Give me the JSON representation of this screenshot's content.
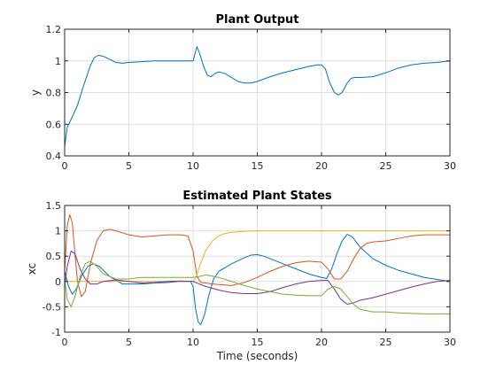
{
  "chart_data": [
    {
      "type": "line",
      "title": "Plant Output",
      "xlabel": "",
      "ylabel": "y",
      "xlim": [
        0,
        30
      ],
      "ylim": [
        0.4,
        1.2
      ],
      "xticks": [
        0,
        5,
        10,
        15,
        20,
        25,
        30
      ],
      "yticks": [
        0.4,
        0.6,
        0.8,
        1,
        1.2
      ],
      "xtick_labels": [
        "0",
        "5",
        "10",
        "15",
        "20",
        "25",
        "30"
      ],
      "ytick_labels": [
        "0.4",
        "0.6",
        "0.8",
        "1",
        "1.2"
      ],
      "grid": true,
      "series": [
        {
          "color": "#0072bd",
          "x": [
            0,
            0.2,
            0.5,
            1,
            1.5,
            2,
            2.3,
            2.6,
            3,
            3.5,
            4,
            4.5,
            5,
            6,
            7,
            8,
            9,
            10,
            10.1,
            10.3,
            10.5,
            10.8,
            11.1,
            11.4,
            11.7,
            12,
            12.5,
            13,
            13.5,
            14,
            14.5,
            15,
            16,
            17,
            18,
            19,
            19.7,
            20,
            20.3,
            20.6,
            21,
            21.3,
            21.6,
            22,
            22.3,
            22.6,
            23,
            24,
            25,
            26,
            27,
            28,
            29,
            30
          ],
          "y": [
            0.46,
            0.58,
            0.63,
            0.72,
            0.85,
            0.97,
            1.02,
            1.035,
            1.03,
            1.01,
            0.99,
            0.985,
            0.99,
            0.995,
            1.0,
            1.0,
            1.0,
            1.0,
            1.03,
            1.09,
            1.05,
            0.97,
            0.91,
            0.9,
            0.92,
            0.93,
            0.92,
            0.895,
            0.87,
            0.86,
            0.86,
            0.87,
            0.9,
            0.925,
            0.945,
            0.965,
            0.975,
            0.975,
            0.95,
            0.87,
            0.8,
            0.785,
            0.8,
            0.86,
            0.89,
            0.895,
            0.895,
            0.9,
            0.925,
            0.955,
            0.975,
            0.985,
            0.99,
            1.0
          ]
        }
      ]
    },
    {
      "type": "line",
      "title": "Estimated Plant States",
      "xlabel": "Time (seconds)",
      "ylabel": "xc",
      "xlim": [
        0,
        30
      ],
      "ylim": [
        -1,
        1.5
      ],
      "xticks": [
        0,
        5,
        10,
        15,
        20,
        25,
        30
      ],
      "yticks": [
        -1,
        -0.5,
        0,
        0.5,
        1,
        1.5
      ],
      "xtick_labels": [
        "0",
        "5",
        "10",
        "15",
        "20",
        "25",
        "30"
      ],
      "ytick_labels": [
        "-1",
        "-0.5",
        "0",
        "0.5",
        "1",
        "1.5"
      ],
      "grid": true,
      "series": [
        {
          "color": "#0072bd",
          "x": [
            0,
            0.3,
            0.6,
            0.9,
            1.3,
            1.8,
            2.2,
            2.7,
            3.5,
            4.5,
            5,
            6,
            7,
            8,
            9,
            9.8,
            10,
            10.2,
            10.4,
            10.6,
            10.9,
            11.2,
            11.6,
            12,
            13,
            14,
            14.5,
            15,
            15.5,
            16,
            17,
            18,
            19,
            20,
            20.4,
            20.8,
            21.2,
            21.6,
            22,
            22.4,
            23,
            24,
            25,
            26,
            27,
            28,
            29,
            30
          ],
          "y": [
            0.2,
            -0.1,
            -0.25,
            -0.15,
            0.1,
            0.3,
            0.35,
            0.3,
            0.1,
            -0.05,
            -0.05,
            -0.05,
            -0.03,
            -0.02,
            0.0,
            0.0,
            -0.1,
            -0.55,
            -0.8,
            -0.85,
            -0.65,
            -0.3,
            0.05,
            0.2,
            0.35,
            0.47,
            0.52,
            0.53,
            0.5,
            0.45,
            0.35,
            0.25,
            0.15,
            0.08,
            0.06,
            0.25,
            0.55,
            0.8,
            0.93,
            0.88,
            0.68,
            0.45,
            0.32,
            0.22,
            0.15,
            0.08,
            0.04,
            0.0
          ]
        },
        {
          "color": "#d95319",
          "x": [
            0,
            0.2,
            0.4,
            0.6,
            0.8,
            1,
            1.3,
            1.6,
            2,
            2.5,
            3,
            3.5,
            4,
            5,
            6,
            7,
            8,
            9,
            9.6,
            10,
            10.3,
            10.6,
            11,
            11.5,
            12,
            13,
            14,
            15,
            16,
            17,
            18,
            19,
            20,
            20.5,
            21,
            21.5,
            22,
            22.5,
            23,
            23.5,
            24,
            25,
            26,
            27,
            28,
            29,
            30
          ],
          "y": [
            0.2,
            1.1,
            1.32,
            1.15,
            0.55,
            0.0,
            -0.3,
            -0.2,
            0.35,
            0.8,
            1.0,
            1.03,
            1.0,
            0.92,
            0.88,
            0.9,
            0.92,
            0.92,
            0.9,
            0.6,
            0.1,
            -0.02,
            -0.03,
            -0.05,
            -0.06,
            -0.08,
            -0.02,
            0.08,
            0.2,
            0.3,
            0.37,
            0.4,
            0.38,
            0.25,
            0.05,
            0.05,
            0.2,
            0.45,
            0.65,
            0.75,
            0.78,
            0.8,
            0.85,
            0.9,
            0.92,
            0.92,
            0.92
          ]
        },
        {
          "color": "#edb120",
          "x": [
            0,
            1,
            2,
            3,
            4,
            5,
            6,
            7,
            8,
            9,
            10,
            10.2,
            10.5,
            11,
            11.5,
            12,
            12.5,
            13,
            14,
            15,
            16,
            18,
            20,
            22,
            24,
            26,
            28,
            30
          ],
          "y": [
            0.0,
            0.0,
            0.0,
            0.0,
            0.0,
            0.0,
            0.0,
            0.0,
            0.0,
            0.0,
            0.0,
            0.05,
            0.3,
            0.62,
            0.8,
            0.9,
            0.95,
            0.97,
            0.99,
            1.0,
            1.0,
            1.0,
            1.0,
            1.0,
            1.0,
            1.0,
            1.0,
            1.0
          ]
        },
        {
          "color": "#7e2f8e",
          "x": [
            0,
            0.2,
            0.5,
            0.8,
            1.2,
            1.6,
            2,
            2.5,
            3,
            4,
            5,
            6,
            7,
            8,
            9,
            10,
            10.5,
            11,
            12,
            13,
            14,
            15,
            16,
            17,
            18,
            19,
            20,
            20.5,
            21,
            21.5,
            22,
            22.5,
            23,
            24,
            25,
            26,
            27,
            28,
            29,
            30
          ],
          "y": [
            -0.1,
            0.3,
            0.6,
            0.55,
            0.25,
            0.05,
            -0.05,
            -0.05,
            0.0,
            0.03,
            0.0,
            -0.03,
            -0.02,
            0.0,
            0.01,
            0.0,
            -0.05,
            -0.1,
            -0.17,
            -0.22,
            -0.24,
            -0.24,
            -0.2,
            -0.12,
            -0.05,
            0.0,
            0.02,
            0.02,
            -0.15,
            -0.35,
            -0.45,
            -0.42,
            -0.37,
            -0.32,
            -0.25,
            -0.18,
            -0.11,
            -0.05,
            0.0,
            0.02
          ]
        },
        {
          "color": "#77ac30",
          "x": [
            0,
            0.2,
            0.5,
            0.8,
            1.2,
            1.6,
            2,
            2.5,
            3,
            4,
            5,
            6,
            7,
            8,
            9,
            10,
            10.5,
            11,
            12,
            13,
            14,
            15,
            16,
            17,
            18,
            19,
            20,
            20.5,
            21,
            21.5,
            22,
            22.5,
            23,
            24,
            25,
            26,
            27,
            28,
            29,
            30
          ],
          "y": [
            0.05,
            -0.35,
            -0.5,
            -0.3,
            0.1,
            0.35,
            0.4,
            0.3,
            0.15,
            0.05,
            0.05,
            0.08,
            0.08,
            0.08,
            0.08,
            0.08,
            0.1,
            0.13,
            0.08,
            0.0,
            -0.08,
            -0.15,
            -0.2,
            -0.25,
            -0.27,
            -0.28,
            -0.28,
            -0.15,
            -0.1,
            -0.15,
            -0.3,
            -0.45,
            -0.55,
            -0.6,
            -0.6,
            -0.62,
            -0.63,
            -0.64,
            -0.64,
            -0.64
          ]
        }
      ]
    }
  ]
}
